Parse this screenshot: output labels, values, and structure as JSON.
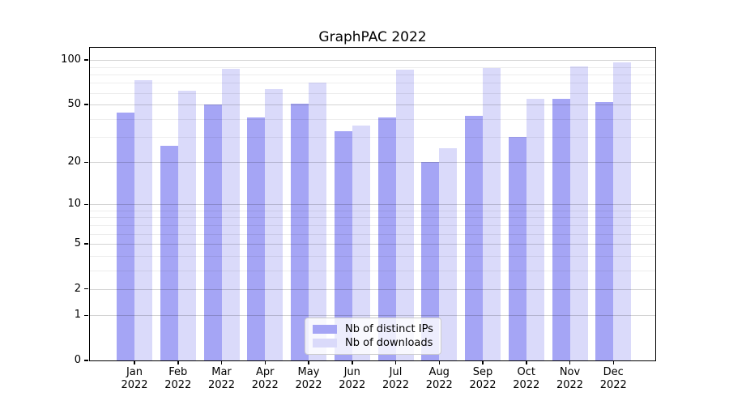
{
  "chart_data": {
    "type": "bar",
    "title": "GraphPAC 2022",
    "categories": [
      "Jan",
      "Feb",
      "Mar",
      "Apr",
      "May",
      "Jun",
      "Jul",
      "Aug",
      "Sep",
      "Oct",
      "Nov",
      "Dec"
    ],
    "category_year": "2022",
    "series": [
      {
        "name": "Nb of distinct IPs",
        "color": "#a5a5f5",
        "values": [
          44,
          26,
          50,
          41,
          51,
          33,
          41,
          20,
          42,
          30,
          55,
          52
        ]
      },
      {
        "name": "Nb of downloads",
        "color": "#dadafa",
        "values": [
          73,
          62,
          87,
          64,
          70,
          36,
          86,
          25,
          88,
          55,
          91,
          96
        ]
      }
    ],
    "xlabel": "",
    "ylabel": "",
    "yscale": "symlog-log1p",
    "ylim": [
      0,
      121
    ],
    "yticks": [
      0,
      1,
      2,
      5,
      10,
      20,
      50,
      100
    ],
    "yticks_minor": [
      3,
      4,
      6,
      7,
      8,
      9,
      30,
      40,
      60,
      70,
      80,
      90
    ],
    "grid": true,
    "legend_position": "lower center"
  },
  "colors": {
    "background": "#ffffff",
    "axis": "#000000",
    "text": "#000000",
    "grid_major": "rgba(0,0,0,0.17)",
    "grid_minor": "rgba(0,0,0,0.07)",
    "legend_border": "#cccccc",
    "legend_background": "rgba(255,255,255,0.8)"
  }
}
